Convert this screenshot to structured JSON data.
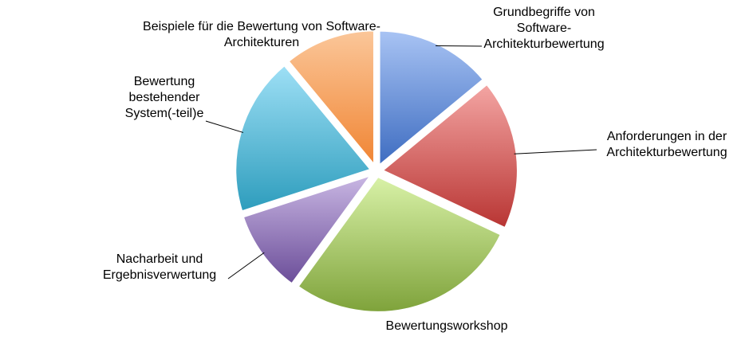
{
  "chart_data": {
    "type": "pie",
    "title": "",
    "legend": "none",
    "slices": [
      {
        "label": "Grundbegriffe von Software-Architekturbewertung",
        "value": 14,
        "color_light": "#a9c4f4",
        "color_dark": "#3c6bc0"
      },
      {
        "label": "Anforderungen in der Architekturbewertung",
        "value": 18,
        "color_light": "#f4a6a4",
        "color_dark": "#b83432"
      },
      {
        "label": "Bewertungsworkshop",
        "value": 28,
        "color_light": "#d9f2a8",
        "color_dark": "#7ea23a"
      },
      {
        "label": "Nacharbeit und Ergebnisverwertung",
        "value": 10,
        "color_light": "#cab8e4",
        "color_dark": "#6a4c98"
      },
      {
        "label": "Bewertung bestehender System(-teil)e",
        "value": 19,
        "color_light": "#9fe0f6",
        "color_dark": "#2c9cbc"
      },
      {
        "label": "Beispiele für die Bewertung von Software-Architekturen",
        "value": 11,
        "color_light": "#fbc79a",
        "color_dark": "#f08432"
      }
    ],
    "label_lines": [
      [
        "Grundbegriffe von",
        "Software-",
        "Architekturbewertung"
      ],
      [
        "Anforderungen in der",
        "Architekturbewertung"
      ],
      [
        "Bewertungsworkshop"
      ],
      [
        "Nacharbeit und",
        "Ergebnisverwertung"
      ],
      [
        "Bewertung",
        "bestehender",
        "System(-teil)e"
      ],
      [
        "Beispiele für die Bewertung von Software-",
        "Architekturen"
      ]
    ]
  }
}
